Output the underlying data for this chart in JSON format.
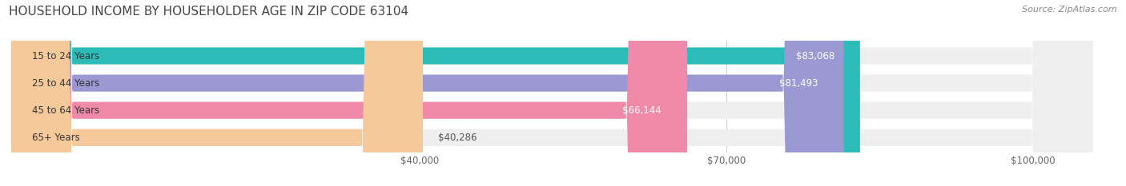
{
  "title": "HOUSEHOLD INCOME BY HOUSEHOLDER AGE IN ZIP CODE 63104",
  "source": "Source: ZipAtlas.com",
  "categories": [
    "15 to 24 Years",
    "25 to 44 Years",
    "45 to 64 Years",
    "65+ Years"
  ],
  "values": [
    83068,
    81493,
    66144,
    40286
  ],
  "value_labels": [
    "$83,068",
    "$81,493",
    "$66,144",
    "$40,286"
  ],
  "bar_colors": [
    "#2bbcb8",
    "#9b99d4",
    "#f08aaa",
    "#f5c99a"
  ],
  "bar_bg_color": "#efefef",
  "x_ticks": [
    40000,
    70000,
    100000
  ],
  "x_tick_labels": [
    "$40,000",
    "$70,000",
    "$100,000"
  ],
  "xlim": [
    0,
    108000
  ],
  "title_fontsize": 11,
  "source_fontsize": 8,
  "label_fontsize": 8.5,
  "tick_fontsize": 8.5,
  "background_color": "#ffffff",
  "bar_height": 0.62,
  "bar_label_color_inside": "#ffffff",
  "bar_label_color_outside": "#555555"
}
